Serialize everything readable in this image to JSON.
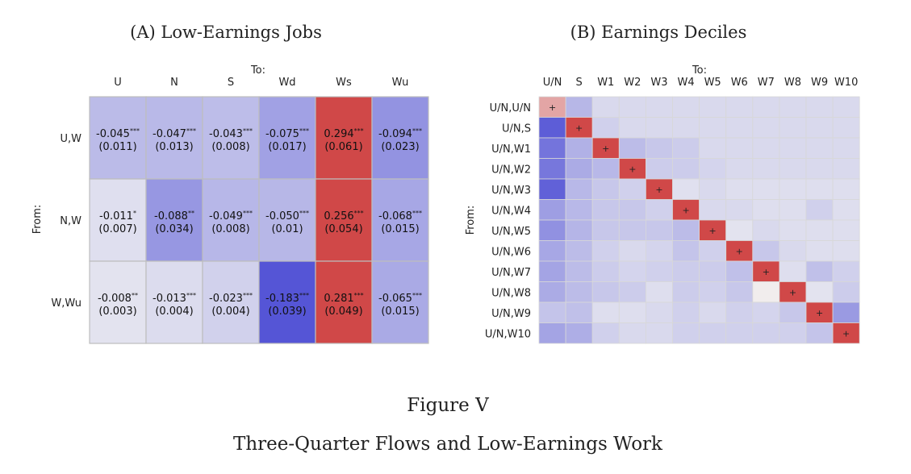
{
  "figure": {
    "label": "Figure V",
    "caption": "Three-Quarter Flows and Low-Earnings Work"
  },
  "colors": {
    "neutral": "#f2f2f2",
    "blue": "#4a4ad4",
    "red": "#d04848",
    "grid": "#bdbdbd"
  },
  "chart_data": [
    {
      "type": "heatmap",
      "title": "(A) Low-Earnings Jobs",
      "xlabel": "To:",
      "ylabel": "From:",
      "x_categories": [
        "U",
        "N",
        "S",
        "Wd",
        "Ws",
        "Wu"
      ],
      "y_categories": [
        "U,W",
        "N,W",
        "W,Wu"
      ],
      "values": [
        [
          -0.045,
          -0.047,
          -0.043,
          -0.075,
          0.294,
          -0.094
        ],
        [
          -0.011,
          -0.088,
          -0.049,
          -0.05,
          0.256,
          -0.068
        ],
        [
          -0.008,
          -0.013,
          -0.023,
          -0.183,
          0.281,
          -0.065
        ]
      ],
      "cell_labels": [
        [
          "-0.045***",
          "-0.047***",
          "-0.043***",
          "-0.075***",
          "0.294***",
          "-0.094***"
        ],
        [
          "-0.011*",
          "-0.088**",
          "-0.049***",
          "-0.050***",
          "0.256***",
          "-0.068***"
        ],
        [
          "-0.008**",
          "-0.013***",
          "-0.023***",
          "-0.183***",
          "0.281***",
          "-0.065***"
        ]
      ],
      "std_errors": [
        [
          "(0.011)",
          "(0.013)",
          "(0.008)",
          "(0.017)",
          "(0.061)",
          "(0.023)"
        ],
        [
          "(0.007)",
          "(0.034)",
          "(0.008)",
          "(0.01)",
          "(0.054)",
          "(0.015)"
        ],
        [
          "(0.003)",
          "(0.004)",
          "(0.004)",
          "(0.039)",
          "(0.049)",
          "(0.015)"
        ]
      ]
    },
    {
      "type": "heatmap",
      "title": "(B) Earnings Deciles",
      "xlabel": "To:",
      "ylabel": "From:",
      "x_categories": [
        "U/N",
        "S",
        "W1",
        "W2",
        "W3",
        "W4",
        "W5",
        "W6",
        "W7",
        "W8",
        "W9",
        "W10"
      ],
      "y_categories": [
        "U/N,U/N",
        "U/N,S",
        "U/N,W1",
        "U/N,W2",
        "U/N,W3",
        "U/N,W4",
        "U/N,W5",
        "U/N,W6",
        "U/N,W7",
        "U/N,W8",
        "U/N,W9",
        "U/N,W10"
      ],
      "diagonal_marker": "+",
      "values": [
        [
          0.35,
          -0.25,
          -0.08,
          -0.08,
          -0.08,
          -0.08,
          -0.08,
          -0.08,
          -0.08,
          -0.08,
          -0.08,
          -0.08
        ],
        [
          -0.85,
          1.0,
          -0.12,
          -0.08,
          -0.08,
          -0.08,
          -0.08,
          -0.08,
          -0.08,
          -0.08,
          -0.08,
          -0.08
        ],
        [
          -0.68,
          -0.28,
          1.0,
          -0.22,
          -0.16,
          -0.14,
          -0.08,
          -0.08,
          -0.08,
          -0.08,
          -0.08,
          -0.08
        ],
        [
          -0.66,
          -0.32,
          -0.24,
          1.0,
          -0.14,
          -0.14,
          -0.1,
          -0.08,
          -0.08,
          -0.08,
          -0.08,
          -0.08
        ],
        [
          -0.82,
          -0.24,
          -0.16,
          -0.12,
          1.0,
          -0.05,
          -0.08,
          -0.06,
          -0.06,
          -0.06,
          -0.06,
          -0.06
        ],
        [
          -0.4,
          -0.24,
          -0.16,
          -0.16,
          -0.12,
          1.0,
          -0.08,
          -0.08,
          -0.06,
          -0.06,
          -0.12,
          -0.06
        ],
        [
          -0.48,
          -0.26,
          -0.16,
          -0.16,
          -0.16,
          -0.22,
          1.0,
          -0.04,
          -0.08,
          -0.06,
          -0.06,
          -0.06
        ],
        [
          -0.34,
          -0.22,
          -0.12,
          -0.08,
          -0.1,
          -0.18,
          -0.12,
          1.0,
          -0.16,
          -0.08,
          -0.06,
          -0.06
        ],
        [
          -0.36,
          -0.22,
          -0.14,
          -0.1,
          -0.12,
          -0.14,
          -0.14,
          -0.2,
          1.0,
          -0.06,
          -0.2,
          -0.12
        ],
        [
          -0.32,
          -0.22,
          -0.16,
          -0.14,
          -0.06,
          -0.14,
          -0.12,
          -0.16,
          0.01,
          1.0,
          -0.04,
          -0.14
        ],
        [
          -0.18,
          -0.2,
          -0.06,
          -0.06,
          -0.08,
          -0.12,
          -0.08,
          -0.12,
          -0.1,
          -0.16,
          1.0,
          -0.42
        ],
        [
          -0.36,
          -0.3,
          -0.12,
          -0.08,
          -0.08,
          -0.12,
          -0.12,
          -0.12,
          -0.12,
          -0.12,
          -0.18,
          1.0
        ]
      ]
    }
  ]
}
